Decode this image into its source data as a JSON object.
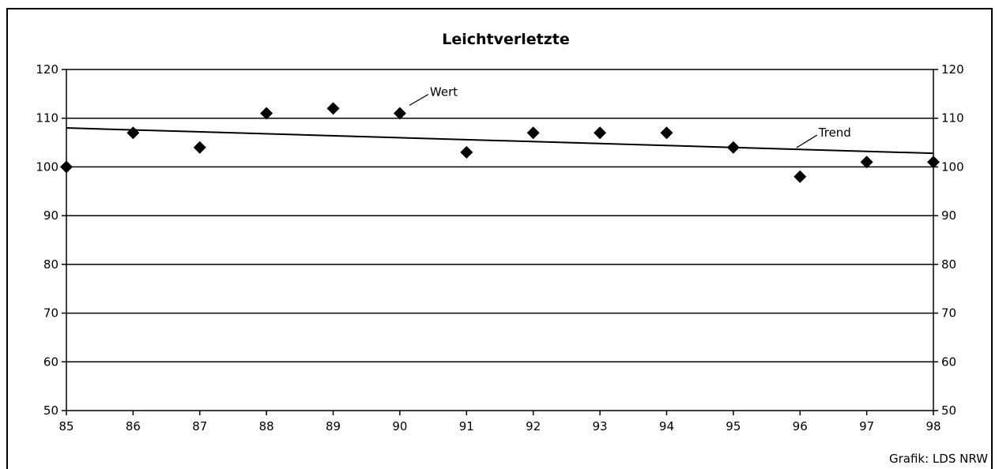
{
  "chart_data": {
    "type": "scatter",
    "title": "Leichtverletzte",
    "xlabel": "",
    "ylabel": "",
    "x": [
      85,
      86,
      87,
      88,
      89,
      90,
      91,
      92,
      93,
      94,
      95,
      96,
      97,
      98
    ],
    "x_tick_labels": [
      "85",
      "86",
      "87",
      "88",
      "89",
      "90",
      "91",
      "92",
      "93",
      "94",
      "95",
      "96",
      "97",
      "98"
    ],
    "y_tick_labels": [
      "50",
      "60",
      "70",
      "80",
      "90",
      "100",
      "110",
      "120"
    ],
    "xlim": [
      85,
      98
    ],
    "ylim": [
      50,
      120
    ],
    "grid": "horizontal",
    "series": [
      {
        "name": "Wert",
        "marker": "diamond",
        "values": [
          100,
          107,
          104,
          111,
          112,
          111,
          103,
          107,
          107,
          107,
          104,
          98,
          101,
          101
        ]
      },
      {
        "name": "Trend",
        "style": "line",
        "start": [
          85,
          108
        ],
        "end": [
          98,
          102.8
        ]
      }
    ],
    "annotations": [
      {
        "text": "Wert",
        "points_to": [
          90,
          111
        ]
      },
      {
        "text": "Trend",
        "points_to": [
          95.9,
          103.3
        ]
      }
    ],
    "credit": "Grafik: LDS NRW",
    "colors": {
      "marker": "#000000",
      "line": "#000000",
      "grid": "#000000",
      "background": "#ffffff"
    }
  }
}
